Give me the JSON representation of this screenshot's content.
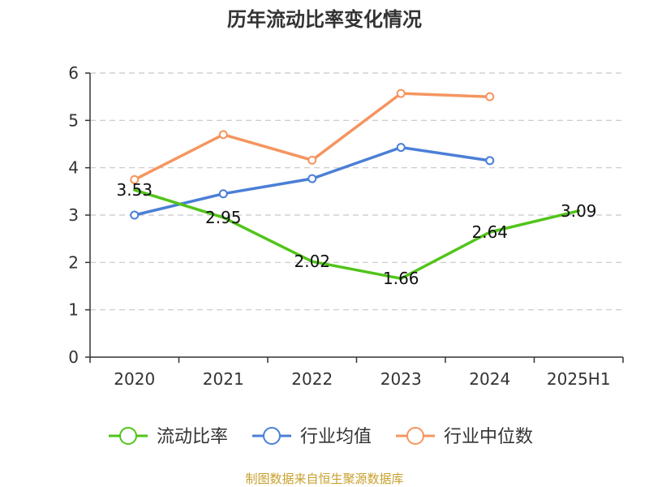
{
  "chart_data": {
    "type": "line",
    "title": "历年流动比率变化情况",
    "categories": [
      "2020",
      "2021",
      "2022",
      "2023",
      "2024",
      "2025H1"
    ],
    "ylim": [
      0,
      6
    ],
    "yticks": [
      "0",
      "1",
      "2",
      "3",
      "4",
      "5",
      "6"
    ],
    "grid": true,
    "legend_position": "bottom",
    "series": [
      {
        "name": "流动比率",
        "color": "#52c41a",
        "values": [
          3.53,
          2.95,
          2.02,
          1.66,
          2.64,
          3.09
        ],
        "labels": [
          "3.53",
          "2.95",
          "2.02",
          "1.66",
          "2.64",
          "3.09"
        ],
        "markers": false
      },
      {
        "name": "行业均值",
        "color": "#4a7fd6",
        "values": [
          3.0,
          3.45,
          3.77,
          4.43,
          4.15,
          null
        ],
        "markers": true
      },
      {
        "name": "行业中位数",
        "color": "#f59560",
        "values": [
          3.75,
          4.7,
          4.16,
          5.57,
          5.5,
          null
        ],
        "markers": true
      }
    ]
  },
  "source": "制图数据来自恒生聚源数据库"
}
